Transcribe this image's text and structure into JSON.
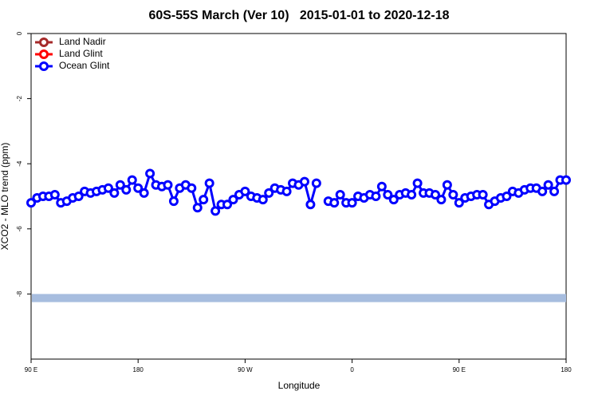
{
  "chart_data": {
    "type": "line",
    "title": "60S-55S March (Ver 10)   2015-01-01 to 2020-12-18",
    "xlabel": "Longitude",
    "ylabel": "XCO2 - MLO trend (ppm)",
    "xlim": [
      90,
      540
    ],
    "ylim": [
      -10,
      0
    ],
    "xticks": [
      {
        "value": 90,
        "label": "90 E"
      },
      180,
      {
        "value": 270,
        "label": "90 W"
      },
      {
        "value": 360,
        "label": "0"
      },
      {
        "value": 450,
        "label": "90 E"
      },
      {
        "value": 540,
        "label": "180"
      }
    ],
    "yticks": [
      0,
      -2,
      -4,
      -6,
      -8
    ],
    "legend": "top-left",
    "band": {
      "ylim": [
        -8.25,
        -8
      ],
      "color": "#a7bddf"
    },
    "x": [
      90,
      95,
      100,
      105,
      110,
      115,
      120,
      125,
      130,
      135,
      140,
      145,
      150,
      155,
      160,
      165,
      170,
      175,
      180,
      185,
      190,
      195,
      200,
      205,
      210,
      215,
      220,
      225,
      230,
      235,
      240,
      245,
      250,
      255,
      260,
      265,
      270,
      275,
      280,
      285,
      290,
      295,
      300,
      305,
      310,
      315,
      320,
      325,
      330,
      335,
      340,
      345,
      350,
      355,
      360,
      365,
      370,
      375,
      380,
      385,
      390,
      395,
      400,
      405,
      410,
      415,
      420,
      425,
      430,
      435,
      440,
      445,
      450,
      455,
      460,
      465,
      470,
      475,
      480,
      485,
      490,
      495,
      500,
      505,
      510,
      515,
      520,
      525,
      530,
      535,
      540
    ],
    "series": [
      {
        "name": "Land Nadir",
        "color": "#a52a2a",
        "values": [
          null,
          null,
          null,
          null,
          null,
          null,
          null,
          null,
          null,
          null,
          null,
          null,
          null,
          null,
          null,
          null,
          null,
          null,
          null,
          null,
          null,
          null,
          null,
          null,
          null,
          null,
          null,
          null,
          null,
          null,
          null,
          null,
          null,
          null,
          null,
          null,
          null,
          null,
          null,
          null,
          null,
          null,
          null,
          null,
          null,
          null,
          null,
          null,
          null,
          null,
          null,
          null,
          null,
          null,
          null,
          null,
          null,
          null,
          null,
          null,
          null,
          null,
          null,
          null,
          null,
          null,
          null,
          null,
          null,
          null,
          null,
          null,
          null,
          null,
          null,
          null,
          null,
          null,
          null,
          null,
          null,
          null,
          null,
          null,
          null,
          null,
          null,
          null,
          null,
          null,
          null
        ]
      },
      {
        "name": "Land Glint",
        "color": "#ff0000",
        "values": [
          null,
          null,
          null,
          null,
          null,
          null,
          null,
          null,
          null,
          null,
          null,
          null,
          null,
          null,
          null,
          null,
          null,
          null,
          null,
          null,
          null,
          null,
          null,
          null,
          null,
          null,
          null,
          null,
          null,
          null,
          null,
          null,
          null,
          null,
          null,
          null,
          null,
          null,
          null,
          null,
          null,
          null,
          null,
          null,
          null,
          null,
          null,
          null,
          null,
          null,
          null,
          null,
          null,
          null,
          null,
          null,
          null,
          null,
          null,
          null,
          null,
          null,
          null,
          null,
          null,
          null,
          null,
          null,
          null,
          null,
          null,
          null,
          null,
          null,
          null,
          null,
          null,
          null,
          null,
          null,
          null,
          null,
          null,
          null,
          null,
          null,
          null,
          null,
          null,
          null,
          null
        ]
      },
      {
        "name": "Ocean Glint",
        "color": "#0000ff",
        "values": [
          -5.2,
          -5.05,
          -5.0,
          -5.0,
          -4.95,
          -5.2,
          -5.15,
          -5.05,
          -5.0,
          -4.85,
          -4.9,
          -4.85,
          -4.8,
          -4.75,
          -4.9,
          -4.65,
          -4.8,
          -4.5,
          -4.75,
          -4.9,
          -4.3,
          -4.65,
          -4.7,
          -4.65,
          -5.15,
          -4.75,
          -4.65,
          -4.75,
          -5.35,
          -5.1,
          -4.6,
          -5.45,
          -5.25,
          -5.25,
          -5.1,
          -4.95,
          -4.85,
          -5.0,
          -5.05,
          -5.1,
          -4.9,
          -4.75,
          -4.8,
          -4.85,
          -4.6,
          -4.65,
          -4.55,
          -5.25,
          -4.6,
          null,
          -5.15,
          -5.2,
          -4.95,
          -5.2,
          -5.2,
          -5.0,
          -5.05,
          -4.95,
          -5.0,
          -4.7,
          -4.95,
          -5.1,
          -4.95,
          -4.9,
          -4.95,
          -4.6,
          -4.9,
          -4.9,
          -4.95,
          -5.1,
          -4.65,
          -4.95,
          -5.2,
          -5.05,
          -5.0,
          -4.95,
          -4.95,
          -5.25,
          -5.15,
          -5.05,
          -5.0,
          -4.85,
          -4.9,
          -4.8,
          -4.75,
          -4.75,
          -4.85,
          -4.65,
          -4.85,
          -4.5,
          -4.5
        ]
      }
    ]
  }
}
